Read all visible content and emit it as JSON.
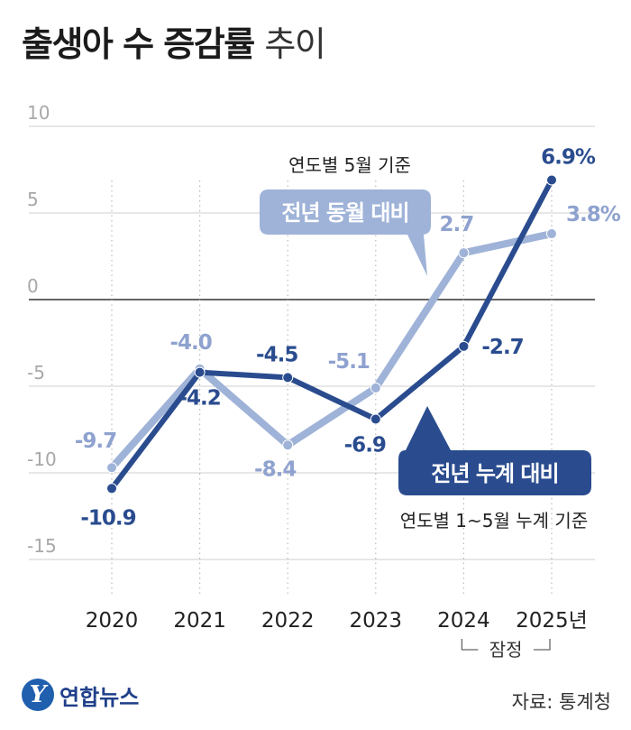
{
  "title": {
    "bold": "출생아 수 증감률",
    "light": "추이"
  },
  "colors": {
    "dark": "#2a4c8f",
    "light": "#9fb3d8",
    "light_label": "#8fa2cf",
    "grid": "#cfcfcf",
    "zero": "#333333",
    "tick": "#a8a8a8"
  },
  "chart_data": {
    "type": "line",
    "x": [
      "2020",
      "2021",
      "2022",
      "2023",
      "2024",
      "2025년"
    ],
    "ylim": [
      -15,
      10
    ],
    "yticks": [
      10,
      5,
      0,
      -5,
      -10,
      -15
    ],
    "ytick_labels": [
      "10",
      "5",
      "0",
      "-5",
      "-10",
      "-15"
    ],
    "grid": true,
    "series": [
      {
        "name": "전년 동월 대비",
        "note": "연도별 5월 기준",
        "color": "#9fb3d8",
        "values": [
          -9.7,
          -4.0,
          -8.4,
          -5.1,
          2.7,
          3.8
        ],
        "labels": [
          "-9.7",
          "-4.0",
          "-8.4",
          "-5.1",
          "2.7",
          "3.8%"
        ]
      },
      {
        "name": "전년 누계 대비",
        "note": "연도별 1~5월 누계 기준",
        "color": "#2a4c8f",
        "values": [
          -10.9,
          -4.2,
          -4.5,
          -6.9,
          -2.7,
          6.9
        ],
        "labels": [
          "-10.9",
          "-4.2",
          "-4.5",
          "-6.9",
          "-2.7",
          "6.9%"
        ]
      }
    ],
    "annotations": {
      "provisional": "잠정"
    }
  },
  "source": "자료: 통계청",
  "logo": {
    "mark": "Y",
    "name": "연합뉴스"
  }
}
